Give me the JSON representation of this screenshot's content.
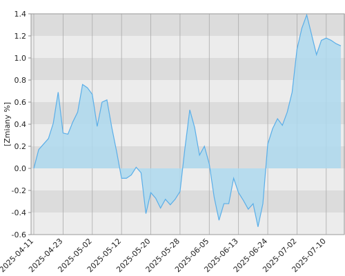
{
  "chart_data": {
    "type": "area",
    "y_label": "[Zmiany %]",
    "categories": [
      "2025-04-11",
      null,
      null,
      null,
      null,
      null,
      "2025-04-23",
      null,
      null,
      null,
      null,
      null,
      "2025-05-02",
      null,
      null,
      null,
      null,
      null,
      "2025-05-12",
      null,
      null,
      null,
      null,
      null,
      "2025-05-20",
      null,
      null,
      null,
      null,
      null,
      "2025-05-28",
      null,
      null,
      null,
      null,
      null,
      "2025-06-05",
      null,
      null,
      null,
      null,
      null,
      "2025-06-13",
      null,
      null,
      null,
      null,
      null,
      "2025-06-24",
      null,
      null,
      null,
      null,
      null,
      "2025-07-02",
      null,
      null,
      null,
      null,
      null,
      "2025-07-10",
      null,
      null,
      null
    ],
    "series": [
      {
        "color": "#5aaee8",
        "fill": "#aed9ee",
        "values": [
          0.0,
          0.17,
          0.22,
          0.27,
          0.41,
          0.69,
          0.32,
          0.31,
          0.42,
          0.51,
          0.76,
          0.73,
          0.67,
          0.38,
          0.6,
          0.62,
          0.37,
          0.15,
          -0.09,
          -0.09,
          -0.06,
          0.01,
          -0.04,
          -0.41,
          -0.22,
          -0.27,
          -0.36,
          -0.28,
          -0.33,
          -0.28,
          -0.21,
          0.18,
          0.53,
          0.37,
          0.12,
          0.2,
          0.04,
          -0.26,
          -0.47,
          -0.32,
          -0.32,
          -0.09,
          -0.22,
          -0.29,
          -0.37,
          -0.32,
          -0.53,
          -0.32,
          0.22,
          0.36,
          0.45,
          0.39,
          0.51,
          0.69,
          1.08,
          1.27,
          1.39,
          1.21,
          1.03,
          1.16,
          1.18,
          1.16,
          1.13,
          1.11
        ]
      }
    ],
    "ylim": [
      -0.6,
      1.4
    ],
    "yticks": [
      -0.6,
      -0.4,
      -0.2,
      {
        "value": 0,
        "label": "0.0"
      },
      0.2,
      0.4,
      0.6,
      0.8,
      {
        "value": 1,
        "label": "1.0"
      },
      1.2,
      1.4
    ],
    "grid": true
  }
}
